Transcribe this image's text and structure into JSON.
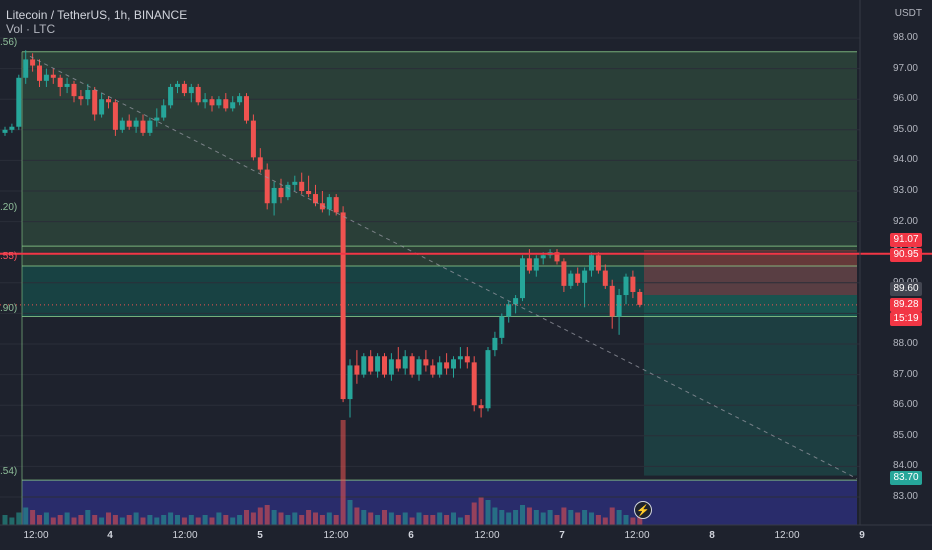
{
  "header": {
    "title": "Litecoin / TetherUS, 1h, BINANCE",
    "indicator": "Vol · LTC",
    "unit": "USDT"
  },
  "fib_labels": [
    ".56)",
    ".20)",
    ".55)",
    ".90)",
    ".54)"
  ],
  "price_tags": {
    "t1": "91.07",
    "t2": "90.95",
    "t3": "89.60",
    "t4": "89.28",
    "t5": "15:19",
    "t6": "83.70"
  },
  "colors": {
    "up": "#26a69a",
    "down": "#ef5350",
    "background": "#1e222d",
    "red_line": "#f23645",
    "fib_line": "#8ccf8c",
    "volume_zone": "#2a2e72"
  },
  "icons": {
    "flash": "flash-icon"
  },
  "chart_data": {
    "type": "candlestick",
    "symbol": "LTC/USDT",
    "interval": "1h",
    "exchange": "BINANCE",
    "y_ticks": [
      "98.00",
      "97.00",
      "96.00",
      "95.00",
      "94.00",
      "93.00",
      "92.00",
      "91.00",
      "90.00",
      "89.00",
      "88.00",
      "87.00",
      "86.00",
      "85.00",
      "84.00",
      "83.00"
    ],
    "ylim": [
      82.4,
      98.5
    ],
    "x_ticks": [
      "12:00",
      "4",
      "12:00",
      "5",
      "12:00",
      "6",
      "12:00",
      "7",
      "12:00",
      "8",
      "12:00",
      "9"
    ],
    "series": [
      {
        "ohlc": [
          [
            94.9,
            95.1,
            94.8,
            95.0
          ],
          [
            95.0,
            95.2,
            94.9,
            95.1
          ],
          [
            95.1,
            96.8,
            95.0,
            96.7
          ],
          [
            96.7,
            97.6,
            96.5,
            97.3
          ],
          [
            97.3,
            97.5,
            96.9,
            97.1
          ],
          [
            97.1,
            97.3,
            96.4,
            96.6
          ],
          [
            96.6,
            97.0,
            96.4,
            96.8
          ],
          [
            96.8,
            97.0,
            96.5,
            96.7
          ],
          [
            96.7,
            96.8,
            96.1,
            96.4
          ],
          [
            96.4,
            96.7,
            96.2,
            96.5
          ],
          [
            96.5,
            96.6,
            95.9,
            96.1
          ],
          [
            96.1,
            96.3,
            95.8,
            96.0
          ],
          [
            96.0,
            96.5,
            95.8,
            96.3
          ],
          [
            96.3,
            96.4,
            95.3,
            95.5
          ],
          [
            95.5,
            96.2,
            95.4,
            96.0
          ],
          [
            96.0,
            96.1,
            95.7,
            95.9
          ],
          [
            95.9,
            96.0,
            94.8,
            95.0
          ],
          [
            95.0,
            95.4,
            94.9,
            95.3
          ],
          [
            95.3,
            95.5,
            95.0,
            95.1
          ],
          [
            95.1,
            95.4,
            94.9,
            95.3
          ],
          [
            95.3,
            95.5,
            94.8,
            94.9
          ],
          [
            94.9,
            95.4,
            94.8,
            95.3
          ],
          [
            95.3,
            95.7,
            95.1,
            95.4
          ],
          [
            95.4,
            96.0,
            95.3,
            95.8
          ],
          [
            95.8,
            96.5,
            95.7,
            96.4
          ],
          [
            96.4,
            96.6,
            96.2,
            96.5
          ],
          [
            96.5,
            96.6,
            96.1,
            96.2
          ],
          [
            96.2,
            96.5,
            95.9,
            96.4
          ],
          [
            96.4,
            96.5,
            95.8,
            95.9
          ],
          [
            95.9,
            96.2,
            95.7,
            96.0
          ],
          [
            96.0,
            96.1,
            95.6,
            95.8
          ],
          [
            95.8,
            96.1,
            95.7,
            96.0
          ],
          [
            96.0,
            96.2,
            95.6,
            95.7
          ],
          [
            95.7,
            96.1,
            95.6,
            95.9
          ],
          [
            95.9,
            96.2,
            95.8,
            96.1
          ],
          [
            96.1,
            96.2,
            95.2,
            95.3
          ],
          [
            95.3,
            95.5,
            94.0,
            94.1
          ],
          [
            94.1,
            94.4,
            93.6,
            93.7
          ],
          [
            93.7,
            93.9,
            92.4,
            92.6
          ],
          [
            92.6,
            93.3,
            92.2,
            93.1
          ],
          [
            93.1,
            93.4,
            92.6,
            92.8
          ],
          [
            92.8,
            93.3,
            92.7,
            93.2
          ],
          [
            93.2,
            93.5,
            93.0,
            93.3
          ],
          [
            93.3,
            93.6,
            92.9,
            93.0
          ],
          [
            93.0,
            93.5,
            92.8,
            92.9
          ],
          [
            92.9,
            93.2,
            92.5,
            92.6
          ],
          [
            92.6,
            93.0,
            92.3,
            92.4
          ],
          [
            92.4,
            92.9,
            92.2,
            92.8
          ],
          [
            92.8,
            92.9,
            92.2,
            92.3
          ],
          [
            92.3,
            92.5,
            86.1,
            86.2
          ],
          [
            86.2,
            87.5,
            85.6,
            87.3
          ],
          [
            87.3,
            87.8,
            86.7,
            87.0
          ],
          [
            87.0,
            87.7,
            86.9,
            87.6
          ],
          [
            87.6,
            87.8,
            87.0,
            87.1
          ],
          [
            87.1,
            87.7,
            86.9,
            87.6
          ],
          [
            87.6,
            87.7,
            86.9,
            87.0
          ],
          [
            87.0,
            87.7,
            86.8,
            87.5
          ],
          [
            87.5,
            87.9,
            87.1,
            87.2
          ],
          [
            87.2,
            87.8,
            87.0,
            87.6
          ],
          [
            87.6,
            87.7,
            86.9,
            87.0
          ],
          [
            87.0,
            87.6,
            86.8,
            87.5
          ],
          [
            87.5,
            87.8,
            87.1,
            87.3
          ],
          [
            87.3,
            87.5,
            86.9,
            87.0
          ],
          [
            87.0,
            87.6,
            86.9,
            87.4
          ],
          [
            87.4,
            87.7,
            87.0,
            87.2
          ],
          [
            87.2,
            87.6,
            86.9,
            87.5
          ],
          [
            87.5,
            87.9,
            87.2,
            87.6
          ],
          [
            87.6,
            87.9,
            87.2,
            87.4
          ],
          [
            87.4,
            87.6,
            85.8,
            86.0
          ],
          [
            86.0,
            86.2,
            85.6,
            85.9
          ],
          [
            85.9,
            87.9,
            85.8,
            87.8
          ],
          [
            87.8,
            88.4,
            87.6,
            88.2
          ],
          [
            88.2,
            89.0,
            88.0,
            88.9
          ],
          [
            88.9,
            89.4,
            88.7,
            89.3
          ],
          [
            89.3,
            89.6,
            89.0,
            89.5
          ],
          [
            89.5,
            90.9,
            89.4,
            90.8
          ],
          [
            90.8,
            91.1,
            90.3,
            90.4
          ],
          [
            90.4,
            90.9,
            90.2,
            90.8
          ],
          [
            90.8,
            91.0,
            90.6,
            90.9
          ],
          [
            90.9,
            91.1,
            90.8,
            91.0
          ],
          [
            91.0,
            91.1,
            90.6,
            90.7
          ],
          [
            90.7,
            90.8,
            89.7,
            89.9
          ],
          [
            89.9,
            90.4,
            89.8,
            90.3
          ],
          [
            90.3,
            90.5,
            89.9,
            90.0
          ],
          [
            90.0,
            90.5,
            89.2,
            90.4
          ],
          [
            90.4,
            91.0,
            90.2,
            90.9
          ],
          [
            90.9,
            91.0,
            90.3,
            90.4
          ],
          [
            90.4,
            90.6,
            89.8,
            89.9
          ],
          [
            89.9,
            90.1,
            88.5,
            88.9
          ],
          [
            88.9,
            89.8,
            88.3,
            89.6
          ],
          [
            89.6,
            90.3,
            89.3,
            90.2
          ],
          [
            90.2,
            90.4,
            89.5,
            89.7
          ],
          [
            89.7,
            89.8,
            89.2,
            89.28
          ]
        ],
        "volumes": [
          4,
          3,
          5,
          7,
          6,
          4,
          5,
          3,
          4,
          5,
          3,
          4,
          6,
          4,
          3,
          5,
          4,
          3,
          4,
          5,
          3,
          4,
          3,
          4,
          5,
          4,
          3,
          4,
          3,
          4,
          3,
          5,
          4,
          3,
          4,
          6,
          5,
          7,
          8,
          6,
          5,
          4,
          5,
          4,
          6,
          5,
          4,
          5,
          4,
          42,
          10,
          7,
          6,
          5,
          4,
          6,
          5,
          4,
          5,
          3,
          5,
          4,
          4,
          5,
          4,
          5,
          3,
          4,
          9,
          11,
          10,
          7,
          6,
          5,
          6,
          8,
          7,
          6,
          5,
          6,
          4,
          7,
          6,
          5,
          6,
          5,
          4,
          3,
          7,
          6,
          4,
          3,
          4
        ]
      }
    ]
  }
}
